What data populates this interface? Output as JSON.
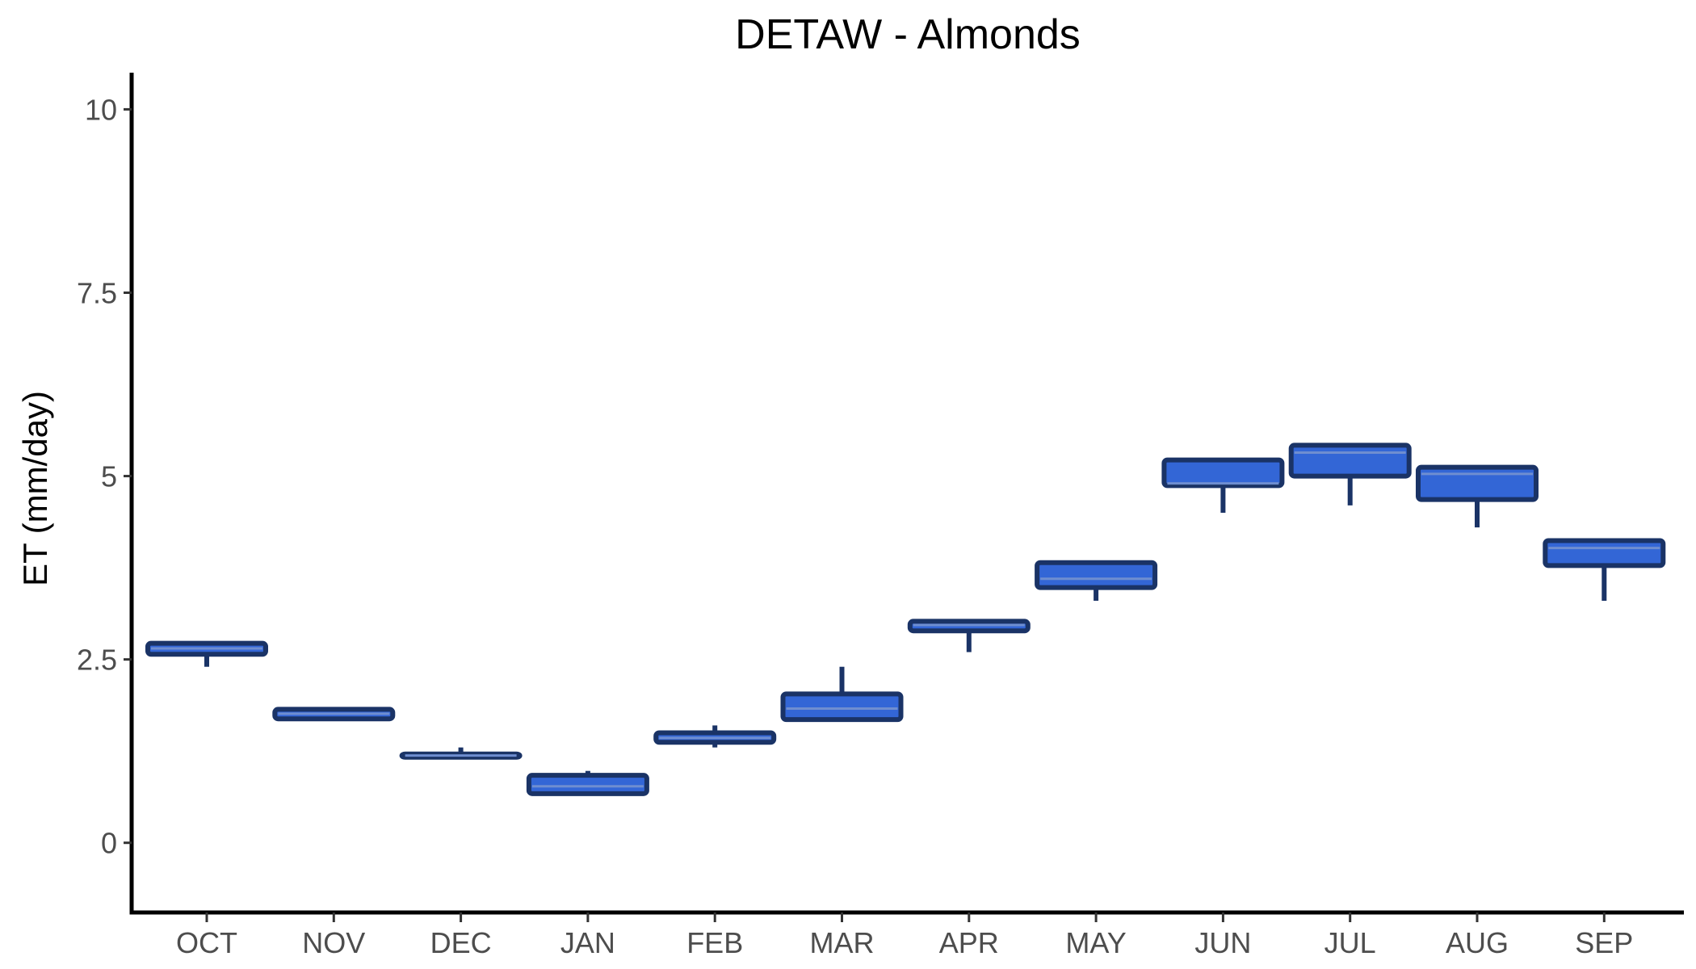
{
  "chart_data": {
    "type": "boxplot",
    "title": "DETAW - Almonds",
    "xlabel": "",
    "ylabel": "ET (mm/day)",
    "ylim": [
      -0.95,
      10.5
    ],
    "yticks": [
      0,
      2.5,
      5,
      7.5,
      10
    ],
    "ytick_labels": [
      "0",
      "2.5",
      "5",
      "7.5",
      "10"
    ],
    "categories": [
      "OCT",
      "NOV",
      "DEC",
      "JAN",
      "FEB",
      "MAR",
      "APR",
      "MAY",
      "JUN",
      "JUL",
      "AUG",
      "SEP"
    ],
    "boxes": [
      {
        "min": 2.4,
        "q1": 2.57,
        "median": 2.65,
        "q3": 2.72,
        "max": 2.72
      },
      {
        "min": 1.69,
        "q1": 1.69,
        "median": 1.76,
        "q3": 1.82,
        "max": 1.82
      },
      {
        "min": 1.17,
        "q1": 1.17,
        "median": 1.19,
        "q3": 1.21,
        "max": 1.3
      },
      {
        "min": 0.67,
        "q1": 0.67,
        "median": 0.77,
        "q3": 0.92,
        "max": 0.98
      },
      {
        "min": 1.3,
        "q1": 1.37,
        "median": 1.43,
        "q3": 1.5,
        "max": 1.6
      },
      {
        "min": 1.68,
        "q1": 1.68,
        "median": 1.83,
        "q3": 2.03,
        "max": 2.4
      },
      {
        "min": 2.6,
        "q1": 2.89,
        "median": 2.97,
        "q3": 3.02,
        "max": 3.02
      },
      {
        "min": 3.3,
        "q1": 3.48,
        "median": 3.6,
        "q3": 3.82,
        "max": 3.82
      },
      {
        "min": 4.5,
        "q1": 4.87,
        "median": 4.9,
        "q3": 5.22,
        "max": 5.22
      },
      {
        "min": 4.6,
        "q1": 5.0,
        "median": 5.32,
        "q3": 5.42,
        "max": 5.42
      },
      {
        "min": 4.3,
        "q1": 4.68,
        "median": 5.03,
        "q3": 5.12,
        "max": 5.12
      },
      {
        "min": 3.3,
        "q1": 3.78,
        "median": 4.02,
        "q3": 4.12,
        "max": 4.12
      }
    ],
    "grid": false,
    "legend": "none",
    "colors": {
      "box_fill": "#3366d6",
      "box_stroke": "#1a3366",
      "median_line": "#6f8ed0",
      "axis": "#000000",
      "tick_label": "#4d4d4d"
    }
  }
}
